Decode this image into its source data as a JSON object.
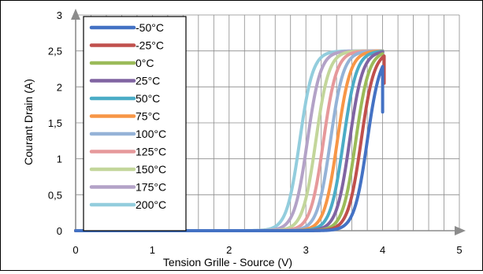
{
  "chart_data": {
    "type": "line",
    "title": "",
    "xlabel": "Tension Grille - Source (V)",
    "ylabel": "Courant Drain  (A)",
    "xlim": [
      0,
      5
    ],
    "ylim": [
      0,
      3
    ],
    "xticks": [
      "0",
      "1",
      "2",
      "3",
      "4",
      "5"
    ],
    "yticks": [
      "0",
      "0,5",
      "1",
      "1,5",
      "2",
      "2,5",
      "3"
    ],
    "grid": true,
    "legend_position": "top-left",
    "series": [
      {
        "name": "-50°C",
        "color": "#4472c4",
        "vth": 3.8,
        "sat": 2.5,
        "xmax": 4.0,
        "yend": 1.65
      },
      {
        "name": "-25°C",
        "color": "#c0504d",
        "vth": 3.72,
        "sat": 2.5,
        "xmax": 4.02,
        "yend": 2.05
      },
      {
        "name": "0°C",
        "color": "#9bbb59",
        "vth": 3.65,
        "sat": 2.5,
        "xmax": 4.0,
        "yend": 2.45
      },
      {
        "name": "25°C",
        "color": "#8064a2",
        "vth": 3.57,
        "sat": 2.5,
        "xmax": 4.0,
        "yend": 2.45
      },
      {
        "name": "50°C",
        "color": "#4bacc6",
        "vth": 3.49,
        "sat": 2.5,
        "xmax": 4.0,
        "yend": 2.47
      },
      {
        "name": "75°C",
        "color": "#f79646",
        "vth": 3.41,
        "sat": 2.5,
        "xmax": 4.0,
        "yend": 2.48
      },
      {
        "name": "100°C",
        "color": "#95b3d7",
        "vth": 3.32,
        "sat": 2.5,
        "xmax": 4.0,
        "yend": 2.48
      },
      {
        "name": "125°C",
        "color": "#e6999b",
        "vth": 3.23,
        "sat": 2.5,
        "xmax": 4.0,
        "yend": 2.49
      },
      {
        "name": "150°C",
        "color": "#c3d69b",
        "vth": 3.13,
        "sat": 2.5,
        "xmax": 4.0,
        "yend": 2.49
      },
      {
        "name": "175°C",
        "color": "#b3a2c7",
        "vth": 3.02,
        "sat": 2.5,
        "xmax": 4.0,
        "yend": 2.49
      },
      {
        "name": "200°C",
        "color": "#93cddd",
        "vth": 2.92,
        "sat": 2.5,
        "xmax": 4.0,
        "yend": 2.5
      }
    ]
  }
}
